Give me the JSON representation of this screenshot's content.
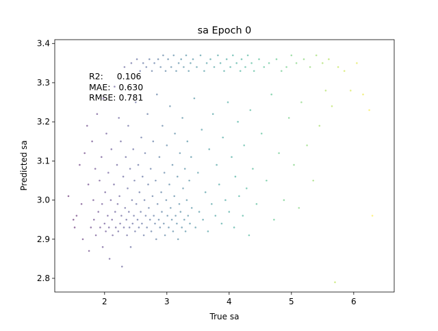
{
  "chart_data": {
    "type": "scatter",
    "title": "sa Epoch 0",
    "xlabel": "True sa",
    "ylabel": "Predicted sa",
    "xlim": [
      1.2,
      6.65
    ],
    "ylim": [
      2.765,
      3.41
    ],
    "xticks": [
      2,
      3,
      4,
      5,
      6
    ],
    "yticks": [
      2.8,
      2.9,
      3.0,
      3.1,
      3.2,
      3.3,
      3.4
    ],
    "xtick_labels": [
      "2",
      "3",
      "4",
      "5",
      "6"
    ],
    "ytick_labels": [
      "2.8",
      "2.9",
      "3.0",
      "3.1",
      "3.2",
      "3.3",
      "3.4"
    ],
    "grid": false,
    "legend": "none",
    "colormap": "viridis",
    "point_alpha": 0.55,
    "annotation": {
      "lines": [
        "R2:     0.106",
        "MAE:   0.630",
        "RMSE: 0.781"
      ]
    },
    "points": [
      [
        1.42,
        3.01
      ],
      [
        1.5,
        2.95
      ],
      [
        1.52,
        2.93
      ],
      [
        1.55,
        2.96
      ],
      [
        1.6,
        3.09
      ],
      [
        1.63,
        2.99
      ],
      [
        1.65,
        2.9
      ],
      [
        1.68,
        3.12
      ],
      [
        1.72,
        3.19
      ],
      [
        1.74,
        3.04
      ],
      [
        1.75,
        2.87
      ],
      [
        1.78,
        2.93
      ],
      [
        1.8,
        3.15
      ],
      [
        1.82,
        3.0
      ],
      [
        1.83,
        2.95
      ],
      [
        1.85,
        3.08
      ],
      [
        1.86,
        2.91
      ],
      [
        1.88,
        3.22
      ],
      [
        1.9,
        2.97
      ],
      [
        1.92,
        3.05
      ],
      [
        1.93,
        2.93
      ],
      [
        1.95,
        3.11
      ],
      [
        1.96,
        2.99
      ],
      [
        1.97,
        2.88
      ],
      [
        1.98,
        3.26
      ],
      [
        2.0,
        2.94
      ],
      [
        2.01,
        3.02
      ],
      [
        2.02,
        2.92
      ],
      [
        2.03,
        3.17
      ],
      [
        2.05,
        2.96
      ],
      [
        2.06,
        3.07
      ],
      [
        2.07,
        2.93
      ],
      [
        2.08,
        2.85
      ],
      [
        2.1,
        3.0
      ],
      [
        2.11,
        3.13
      ],
      [
        2.12,
        2.95
      ],
      [
        2.13,
        2.91
      ],
      [
        2.15,
        3.04
      ],
      [
        2.16,
        3.29
      ],
      [
        2.17,
        2.97
      ],
      [
        2.18,
        2.93
      ],
      [
        2.2,
        3.09
      ],
      [
        2.21,
        2.99
      ],
      [
        2.22,
        2.92
      ],
      [
        2.23,
        3.21
      ],
      [
        2.24,
        3.01
      ],
      [
        2.25,
        2.94
      ],
      [
        2.26,
        3.15
      ],
      [
        2.27,
        2.96
      ],
      [
        2.28,
        2.83
      ],
      [
        2.3,
        3.06
      ],
      [
        2.31,
        2.93
      ],
      [
        2.32,
        3.34
      ],
      [
        2.33,
        2.98
      ],
      [
        2.34,
        3.11
      ],
      [
        2.35,
        2.95
      ],
      [
        2.36,
        2.91
      ],
      [
        2.37,
        3.03
      ],
      [
        2.38,
        3.19
      ],
      [
        2.39,
        2.97
      ],
      [
        2.4,
        2.93
      ],
      [
        2.41,
        3.08
      ],
      [
        2.42,
        2.88
      ],
      [
        2.43,
        3.35
      ],
      [
        2.44,
        3.0
      ],
      [
        2.45,
        2.94
      ],
      [
        2.46,
        3.13
      ],
      [
        2.47,
        2.96
      ],
      [
        2.48,
        3.05
      ],
      [
        2.49,
        2.92
      ],
      [
        2.5,
        3.25
      ],
      [
        2.51,
        2.99
      ],
      [
        2.52,
        3.36
      ],
      [
        2.53,
        2.95
      ],
      [
        2.54,
        3.09
      ],
      [
        2.55,
        2.93
      ],
      [
        2.56,
        3.02
      ],
      [
        2.57,
        3.33
      ],
      [
        2.58,
        2.97
      ],
      [
        2.59,
        3.16
      ],
      [
        2.6,
        2.94
      ],
      [
        2.61,
        3.06
      ],
      [
        2.62,
        3.35
      ],
      [
        2.63,
        2.91
      ],
      [
        2.64,
        3.0
      ],
      [
        2.65,
        3.12
      ],
      [
        2.66,
        2.96
      ],
      [
        2.67,
        3.34
      ],
      [
        2.68,
        2.93
      ],
      [
        2.69,
        3.22
      ],
      [
        2.7,
        3.04
      ],
      [
        2.71,
        2.98
      ],
      [
        2.72,
        3.36
      ],
      [
        2.73,
        2.95
      ],
      [
        2.74,
        3.08
      ],
      [
        2.75,
        2.92
      ],
      [
        2.76,
        3.33
      ],
      [
        2.77,
        3.01
      ],
      [
        2.78,
        3.15
      ],
      [
        2.79,
        2.96
      ],
      [
        2.8,
        3.35
      ],
      [
        2.81,
        2.94
      ],
      [
        2.82,
        3.05
      ],
      [
        2.83,
        2.9
      ],
      [
        2.84,
        3.27
      ],
      [
        2.85,
        2.99
      ],
      [
        2.86,
        3.36
      ],
      [
        2.87,
        2.95
      ],
      [
        2.88,
        3.11
      ],
      [
        2.89,
        2.93
      ],
      [
        2.9,
        3.34
      ],
      [
        2.91,
        3.02
      ],
      [
        2.92,
        2.97
      ],
      [
        2.93,
        3.19
      ],
      [
        2.94,
        3.37
      ],
      [
        2.95,
        2.94
      ],
      [
        2.96,
        3.07
      ],
      [
        2.97,
        2.91
      ],
      [
        2.98,
        3.33
      ],
      [
        2.99,
        3.0
      ],
      [
        3.0,
        3.14
      ],
      [
        3.01,
        2.96
      ],
      [
        3.02,
        3.36
      ],
      [
        3.03,
        2.93
      ],
      [
        3.04,
        3.04
      ],
      [
        3.05,
        3.24
      ],
      [
        3.06,
        2.98
      ],
      [
        3.07,
        3.34
      ],
      [
        3.08,
        2.95
      ],
      [
        3.09,
        3.09
      ],
      [
        3.1,
        2.92
      ],
      [
        3.11,
        3.37
      ],
      [
        3.12,
        3.01
      ],
      [
        3.13,
        3.17
      ],
      [
        3.14,
        2.96
      ],
      [
        3.15,
        3.33
      ],
      [
        3.16,
        2.94
      ],
      [
        3.17,
        3.06
      ],
      [
        3.18,
        2.9
      ],
      [
        3.19,
        3.35
      ],
      [
        3.2,
        2.99
      ],
      [
        3.21,
        3.12
      ],
      [
        3.22,
        2.97
      ],
      [
        3.23,
        3.36
      ],
      [
        3.24,
        2.93
      ],
      [
        3.25,
        3.21
      ],
      [
        3.26,
        3.03
      ],
      [
        3.27,
        3.34
      ],
      [
        3.28,
        2.95
      ],
      [
        3.29,
        3.08
      ],
      [
        3.3,
        2.92
      ],
      [
        3.31,
        3.37
      ],
      [
        3.32,
        3.0
      ],
      [
        3.33,
        3.15
      ],
      [
        3.34,
        2.96
      ],
      [
        3.35,
        3.33
      ],
      [
        3.36,
        3.05
      ],
      [
        3.37,
        2.94
      ],
      [
        3.38,
        3.35
      ],
      [
        3.39,
        3.11
      ],
      [
        3.4,
        2.98
      ],
      [
        3.42,
        3.36
      ],
      [
        3.44,
        3.26
      ],
      [
        3.46,
        2.93
      ],
      [
        3.48,
        3.34
      ],
      [
        3.5,
        3.07
      ],
      [
        3.52,
        2.97
      ],
      [
        3.54,
        3.37
      ],
      [
        3.56,
        3.18
      ],
      [
        3.58,
        2.95
      ],
      [
        3.6,
        3.33
      ],
      [
        3.62,
        3.02
      ],
      [
        3.64,
        3.35
      ],
      [
        3.66,
        2.92
      ],
      [
        3.68,
        3.13
      ],
      [
        3.7,
        3.36
      ],
      [
        3.72,
        2.99
      ],
      [
        3.74,
        3.22
      ],
      [
        3.76,
        3.34
      ],
      [
        3.78,
        2.96
      ],
      [
        3.8,
        3.09
      ],
      [
        3.82,
        3.37
      ],
      [
        3.84,
        3.04
      ],
      [
        3.86,
        3.35
      ],
      [
        3.88,
        2.94
      ],
      [
        3.9,
        3.16
      ],
      [
        3.92,
        3.33
      ],
      [
        3.94,
        3.0
      ],
      [
        3.96,
        3.36
      ],
      [
        3.98,
        3.25
      ],
      [
        4.0,
        2.97
      ],
      [
        4.02,
        3.34
      ],
      [
        4.04,
        3.11
      ],
      [
        4.06,
        3.37
      ],
      [
        4.08,
        2.93
      ],
      [
        4.1,
        3.06
      ],
      [
        4.12,
        3.35
      ],
      [
        4.14,
        3.2
      ],
      [
        4.16,
        3.01
      ],
      [
        4.18,
        3.33
      ],
      [
        4.2,
        3.36
      ],
      [
        4.22,
        2.96
      ],
      [
        4.24,
        3.14
      ],
      [
        4.26,
        3.34
      ],
      [
        4.28,
        3.03
      ],
      [
        4.3,
        3.37
      ],
      [
        4.32,
        2.91
      ],
      [
        4.34,
        3.23
      ],
      [
        4.36,
        3.35
      ],
      [
        4.38,
        3.08
      ],
      [
        4.4,
        3.33
      ],
      [
        4.44,
        2.99
      ],
      [
        4.48,
        3.36
      ],
      [
        4.52,
        3.17
      ],
      [
        4.56,
        3.34
      ],
      [
        4.6,
        3.05
      ],
      [
        4.64,
        3.35
      ],
      [
        4.68,
        3.27
      ],
      [
        4.72,
        2.95
      ],
      [
        4.76,
        3.36
      ],
      [
        4.8,
        3.12
      ],
      [
        4.84,
        3.33
      ],
      [
        4.88,
        3.0
      ],
      [
        4.92,
        3.34
      ],
      [
        4.96,
        3.21
      ],
      [
        5.0,
        3.37
      ],
      [
        5.04,
        3.09
      ],
      [
        5.08,
        3.35
      ],
      [
        5.12,
        2.98
      ],
      [
        5.16,
        3.25
      ],
      [
        5.2,
        3.36
      ],
      [
        5.25,
        3.14
      ],
      [
        5.3,
        3.34
      ],
      [
        5.35,
        3.05
      ],
      [
        5.4,
        3.37
      ],
      [
        5.45,
        3.19
      ],
      [
        5.5,
        3.35
      ],
      [
        5.55,
        3.28
      ],
      [
        5.6,
        3.36
      ],
      [
        5.65,
        3.24
      ],
      [
        5.7,
        2.79
      ],
      [
        5.75,
        3.34
      ],
      [
        5.85,
        3.33
      ],
      [
        5.95,
        3.28
      ],
      [
        6.05,
        3.35
      ],
      [
        6.15,
        3.27
      ],
      [
        6.25,
        3.23
      ],
      [
        6.3,
        2.96
      ]
    ]
  }
}
